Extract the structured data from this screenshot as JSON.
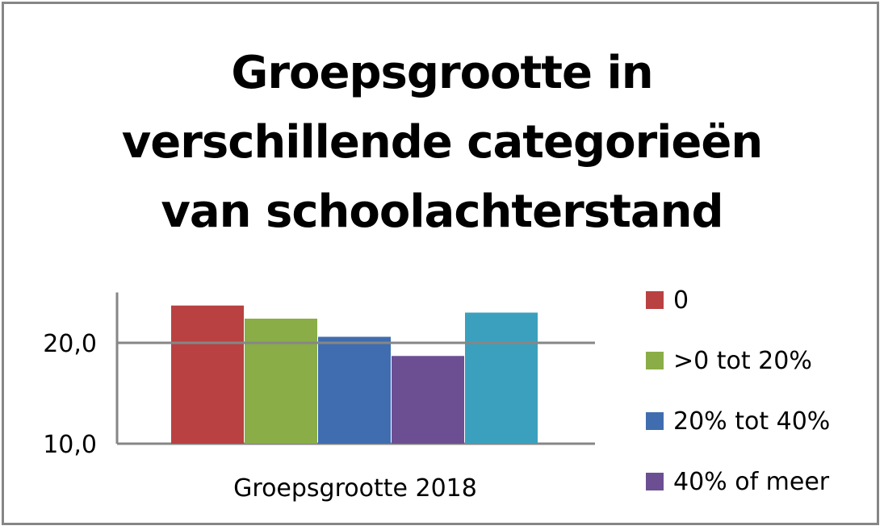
{
  "chart_data": {
    "type": "bar",
    "title": "Groepsgrootte in verschillende categorieën van schoolachterstand",
    "title_lines": [
      "Groepsgrootte in",
      "verschillende categorieën",
      "van schoolachterstand"
    ],
    "categories": [
      "Groepsgrootte 2018"
    ],
    "series": [
      {
        "name": "0",
        "color": "#b94141",
        "values": [
          23.7
        ]
      },
      {
        "name": ">0 tot 20%",
        "color": "#8aad47",
        "values": [
          22.4
        ]
      },
      {
        "name": "20% tot 40%",
        "color": "#3f6daf",
        "values": [
          20.6
        ]
      },
      {
        "name": "40% of meer",
        "color": "#6c4f92",
        "values": [
          18.7
        ]
      },
      {
        "name": "",
        "color": "#3aa0be",
        "values": [
          23.0
        ]
      }
    ],
    "ylim": [
      10,
      25
    ],
    "yticks": [
      10,
      20
    ],
    "ytick_labels": [
      "10,0",
      "20,0"
    ],
    "grid": true,
    "legend": "right",
    "xlabel": "",
    "ylabel": ""
  }
}
